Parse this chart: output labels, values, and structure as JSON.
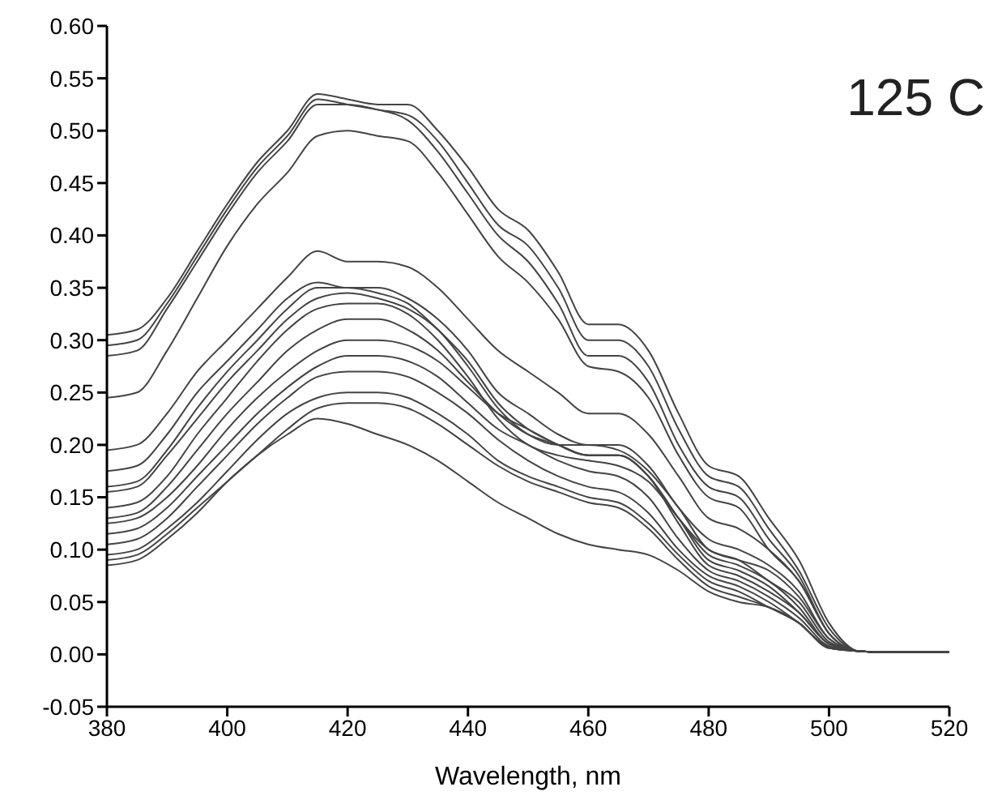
{
  "chart_data": {
    "type": "line",
    "xlabel": "Wavelength, nm",
    "annotations": [
      "125 C"
    ],
    "grid": false,
    "legend": false,
    "marker": "none",
    "line_style": "solid",
    "xlim": [
      380,
      520
    ],
    "xticks": [
      380,
      400,
      420,
      440,
      460,
      480,
      500,
      520
    ],
    "ylim": [
      -0.05,
      0.6
    ],
    "yticks": [
      {
        "value": -0.05,
        "label": "-0.05"
      },
      {
        "value": 0,
        "label": "0.00"
      },
      {
        "value": 0.05,
        "label": "0.05"
      },
      {
        "value": 0.1,
        "label": "0.10"
      },
      {
        "value": 0.15,
        "label": "0.15"
      },
      {
        "value": 0.2,
        "label": "0.20"
      },
      {
        "value": 0.25,
        "label": "0.25"
      },
      {
        "value": 0.3,
        "label": "0.30"
      },
      {
        "value": 0.35,
        "label": "0.35"
      },
      {
        "value": 0.4,
        "label": "0.40"
      },
      {
        "value": 0.45,
        "label": "0.45"
      },
      {
        "value": 0.5,
        "label": "0.50"
      },
      {
        "value": 0.55,
        "label": "0.55"
      },
      {
        "value": 0.6,
        "label": "0.60"
      }
    ],
    "x": [
      380,
      385,
      390,
      395,
      400,
      405,
      410,
      415,
      420,
      425,
      430,
      435,
      440,
      445,
      450,
      455,
      460,
      465,
      470,
      475,
      480,
      485,
      490,
      495,
      500,
      505,
      510,
      515,
      520
    ],
    "series": [
      {
        "color": "#444444",
        "values": [
          0.305,
          0.31,
          0.34,
          0.385,
          0.43,
          0.47,
          0.5,
          0.535,
          0.53,
          0.525,
          0.525,
          0.5,
          0.465,
          0.425,
          0.405,
          0.365,
          0.315,
          0.315,
          0.29,
          0.23,
          0.18,
          0.17,
          0.13,
          0.09,
          0.03,
          0.003,
          0.002,
          0.002,
          0.002
        ]
      },
      {
        "color": "#444444",
        "values": [
          0.295,
          0.3,
          0.335,
          0.38,
          0.425,
          0.465,
          0.495,
          0.53,
          0.525,
          0.52,
          0.515,
          0.49,
          0.45,
          0.41,
          0.39,
          0.35,
          0.3,
          0.3,
          0.275,
          0.215,
          0.17,
          0.16,
          0.12,
          0.08,
          0.025,
          0.003,
          0.002,
          0.002,
          0.002
        ]
      },
      {
        "color": "#444444",
        "values": [
          0.285,
          0.29,
          0.33,
          0.375,
          0.42,
          0.46,
          0.49,
          0.525,
          0.525,
          0.52,
          0.51,
          0.48,
          0.44,
          0.4,
          0.375,
          0.335,
          0.285,
          0.285,
          0.26,
          0.2,
          0.16,
          0.15,
          0.11,
          0.075,
          0.02,
          0.003,
          0.002,
          0.002,
          0.002
        ]
      },
      {
        "color": "#444444",
        "values": [
          0.245,
          0.25,
          0.29,
          0.34,
          0.39,
          0.43,
          0.46,
          0.495,
          0.5,
          0.495,
          0.49,
          0.46,
          0.42,
          0.38,
          0.355,
          0.32,
          0.275,
          0.27,
          0.245,
          0.19,
          0.15,
          0.14,
          0.1,
          0.07,
          0.02,
          0.003,
          0.002,
          0.002,
          0.002
        ]
      },
      {
        "color": "#444444",
        "values": [
          0.195,
          0.2,
          0.23,
          0.27,
          0.3,
          0.33,
          0.36,
          0.385,
          0.375,
          0.375,
          0.37,
          0.35,
          0.32,
          0.29,
          0.27,
          0.25,
          0.23,
          0.23,
          0.21,
          0.17,
          0.13,
          0.12,
          0.1,
          0.07,
          0.02,
          0.003,
          0.002,
          0.002,
          0.002
        ]
      },
      {
        "color": "#444444",
        "values": [
          0.175,
          0.18,
          0.21,
          0.25,
          0.28,
          0.31,
          0.34,
          0.355,
          0.35,
          0.35,
          0.34,
          0.32,
          0.29,
          0.25,
          0.23,
          0.21,
          0.2,
          0.2,
          0.18,
          0.14,
          0.11,
          0.1,
          0.085,
          0.06,
          0.015,
          0.003,
          0.002,
          0.002,
          0.002
        ]
      },
      {
        "color": "#444444",
        "values": [
          0.16,
          0.165,
          0.195,
          0.235,
          0.27,
          0.3,
          0.33,
          0.35,
          0.35,
          0.345,
          0.335,
          0.31,
          0.28,
          0.24,
          0.215,
          0.2,
          0.19,
          0.19,
          0.17,
          0.13,
          0.1,
          0.09,
          0.08,
          0.055,
          0.015,
          0.003,
          0.002,
          0.002,
          0.002
        ]
      },
      {
        "color": "#444444",
        "values": [
          0.155,
          0.16,
          0.19,
          0.225,
          0.26,
          0.29,
          0.32,
          0.34,
          0.345,
          0.34,
          0.33,
          0.31,
          0.275,
          0.235,
          0.21,
          0.2,
          0.2,
          0.195,
          0.175,
          0.14,
          0.1,
          0.09,
          0.07,
          0.05,
          0.012,
          0.003,
          0.002,
          0.002,
          0.002
        ]
      },
      {
        "color": "#444444",
        "values": [
          0.14,
          0.145,
          0.17,
          0.21,
          0.245,
          0.28,
          0.31,
          0.33,
          0.335,
          0.335,
          0.325,
          0.3,
          0.265,
          0.225,
          0.2,
          0.19,
          0.185,
          0.18,
          0.165,
          0.13,
          0.095,
          0.085,
          0.07,
          0.045,
          0.01,
          0.003,
          0.002,
          0.002,
          0.002
        ]
      },
      {
        "color": "#444444",
        "values": [
          0.13,
          0.135,
          0.16,
          0.195,
          0.23,
          0.26,
          0.29,
          0.31,
          0.32,
          0.32,
          0.31,
          0.29,
          0.26,
          0.23,
          0.21,
          0.2,
          0.19,
          0.19,
          0.17,
          0.13,
          0.09,
          0.08,
          0.065,
          0.04,
          0.01,
          0.003,
          0.002,
          0.002,
          0.002
        ]
      },
      {
        "color": "#444444",
        "values": [
          0.125,
          0.13,
          0.15,
          0.18,
          0.215,
          0.245,
          0.27,
          0.29,
          0.3,
          0.3,
          0.295,
          0.28,
          0.255,
          0.23,
          0.215,
          0.2,
          0.19,
          0.19,
          0.17,
          0.125,
          0.085,
          0.075,
          0.06,
          0.04,
          0.01,
          0.003,
          0.002,
          0.002,
          0.002
        ]
      },
      {
        "color": "#444444",
        "values": [
          0.115,
          0.12,
          0.14,
          0.17,
          0.2,
          0.23,
          0.255,
          0.275,
          0.285,
          0.285,
          0.28,
          0.265,
          0.24,
          0.215,
          0.2,
          0.185,
          0.175,
          0.17,
          0.15,
          0.11,
          0.08,
          0.07,
          0.055,
          0.035,
          0.008,
          0.003,
          0.002,
          0.002,
          0.002
        ]
      },
      {
        "color": "#444444",
        "values": [
          0.105,
          0.11,
          0.13,
          0.16,
          0.19,
          0.22,
          0.245,
          0.265,
          0.27,
          0.27,
          0.265,
          0.25,
          0.23,
          0.205,
          0.185,
          0.17,
          0.16,
          0.155,
          0.135,
          0.1,
          0.075,
          0.065,
          0.05,
          0.03,
          0.007,
          0.003,
          0.002,
          0.002,
          0.002
        ]
      },
      {
        "color": "#444444",
        "values": [
          0.095,
          0.1,
          0.12,
          0.145,
          0.175,
          0.205,
          0.23,
          0.245,
          0.25,
          0.25,
          0.245,
          0.23,
          0.21,
          0.185,
          0.17,
          0.16,
          0.15,
          0.145,
          0.125,
          0.095,
          0.07,
          0.06,
          0.045,
          0.03,
          0.006,
          0.003,
          0.002,
          0.002,
          0.002
        ]
      },
      {
        "color": "#444444",
        "values": [
          0.085,
          0.09,
          0.11,
          0.135,
          0.165,
          0.19,
          0.215,
          0.235,
          0.24,
          0.24,
          0.235,
          0.22,
          0.2,
          0.18,
          0.165,
          0.155,
          0.145,
          0.14,
          0.12,
          0.09,
          0.065,
          0.055,
          0.045,
          0.03,
          0.006,
          0.003,
          0.002,
          0.002,
          0.002
        ]
      },
      {
        "color": "#444444",
        "values": [
          0.09,
          0.095,
          0.115,
          0.14,
          0.165,
          0.19,
          0.21,
          0.225,
          0.22,
          0.21,
          0.2,
          0.185,
          0.165,
          0.145,
          0.13,
          0.115,
          0.105,
          0.1,
          0.095,
          0.08,
          0.06,
          0.05,
          0.045,
          0.03,
          0.006,
          0.003,
          0.002,
          0.002,
          0.002
        ]
      }
    ]
  }
}
